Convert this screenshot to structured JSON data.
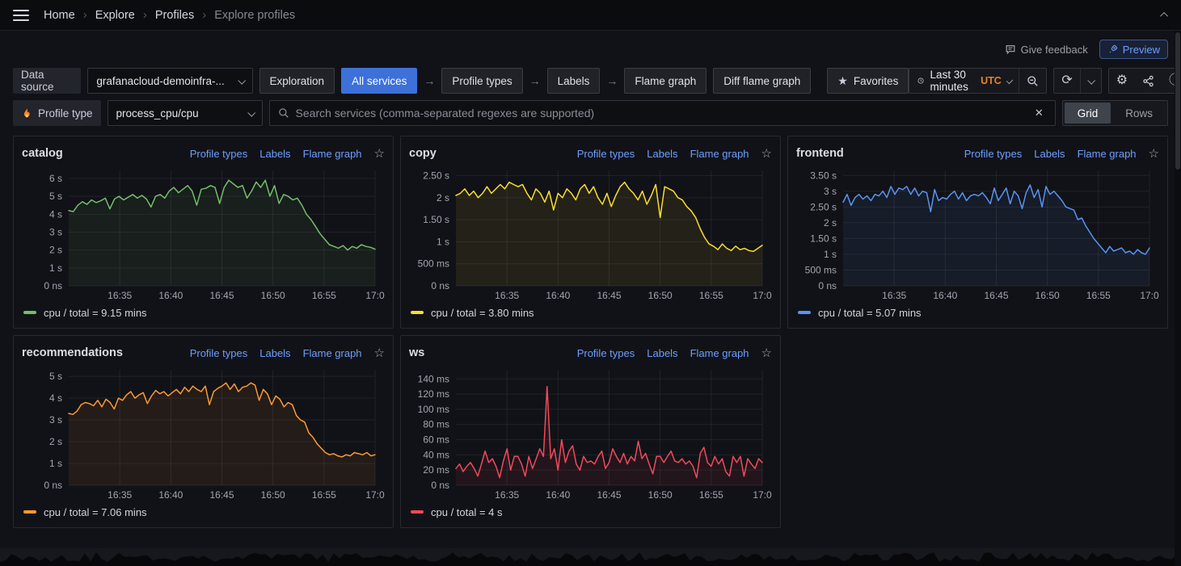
{
  "topnav": {
    "breadcrumbs": [
      "Home",
      "Explore",
      "Profiles",
      "Explore profiles"
    ]
  },
  "page_actions": {
    "give_feedback": "Give feedback",
    "preview": "Preview"
  },
  "toolbar": {
    "data_source_label": "Data source",
    "data_source_value": "grafanacloud-demoinfra-...",
    "exploration": "Exploration",
    "steps": [
      "All services",
      "Profile types",
      "Labels",
      "Flame graph"
    ],
    "diff_flame_graph": "Diff flame graph",
    "favorites": "Favorites",
    "time_range": "Last 30 minutes",
    "timezone": "UTC"
  },
  "filters": {
    "profile_type_label": "Profile type",
    "profile_type_value": "process_cpu/cpu",
    "search_placeholder": "Search services (comma-separated regexes are supported)",
    "layout_options": [
      "Grid",
      "Rows"
    ],
    "layout_selected": "Grid"
  },
  "icons": {
    "breadcrumb_separator": "›",
    "step_arrow": "→",
    "favorites_star": "★",
    "panel_star": "☆",
    "clear": "✕",
    "gear": "⚙",
    "info": "ⓘ",
    "refresh": "⟳"
  },
  "colors": {
    "accent_blue": "#3D71D9",
    "link_blue": "#6E9FFF",
    "utc_orange": "#E8832C",
    "series_green": "#73BF69",
    "series_yellow": "#FADE2A",
    "series_blue": "#5794F2",
    "series_orange": "#FF9830",
    "series_red": "#F2495C"
  },
  "panel_links": [
    "Profile types",
    "Labels",
    "Flame graph"
  ],
  "chart_data": [
    {
      "type": "line",
      "title": "catalog",
      "legend": "cpu / total = 9.15 mins",
      "series_name": "cpu",
      "color": "#73BF69",
      "unit": "seconds",
      "ylim": [
        0,
        6.45
      ],
      "y_ticks": [
        {
          "label": "0 ns",
          "value": 0
        },
        {
          "label": "1 s",
          "value": 1
        },
        {
          "label": "2 s",
          "value": 2
        },
        {
          "label": "3 s",
          "value": 3
        },
        {
          "label": "4 s",
          "value": 4
        },
        {
          "label": "5 s",
          "value": 5
        },
        {
          "label": "6 s",
          "value": 6
        }
      ],
      "x_range_minutes": 30,
      "x_ticks": [
        {
          "label": "16:35",
          "minute": 5
        },
        {
          "label": "16:40",
          "minute": 10
        },
        {
          "label": "16:45",
          "minute": 15
        },
        {
          "label": "16:50",
          "minute": 20
        },
        {
          "label": "16:55",
          "minute": 25
        },
        {
          "label": "17:0",
          "minute": 30
        }
      ],
      "values": [
        4.2,
        4.15,
        4.5,
        4.7,
        4.55,
        4.8,
        4.65,
        4.75,
        4.9,
        4.3,
        4.85,
        5.0,
        4.8,
        4.95,
        5.1,
        4.9,
        5.05,
        4.85,
        4.4,
        5.0,
        5.1,
        4.9,
        5.3,
        5.5,
        5.2,
        5.4,
        5.6,
        5.3,
        4.5,
        5.4,
        5.45,
        5.6,
        5.5,
        4.6,
        5.5,
        5.9,
        5.7,
        5.5,
        5.6,
        4.9,
        5.3,
        5.8,
        5.5,
        5.9,
        5.0,
        5.6,
        4.6,
        5.1,
        5.0,
        4.8,
        4.9,
        4.5,
        4.0,
        3.7,
        3.3,
        2.9,
        2.6,
        2.3,
        2.2,
        2.1,
        2.25,
        2.0,
        2.2,
        2.1,
        2.3,
        2.2,
        2.15,
        2.05
      ]
    },
    {
      "type": "line",
      "title": "copy",
      "legend": "cpu / total = 3.80 mins",
      "series_name": "cpu",
      "color": "#FADE2A",
      "unit": "seconds",
      "ylim": [
        0,
        2.62
      ],
      "y_ticks": [
        {
          "label": "0 ns",
          "value": 0
        },
        {
          "label": "500 ms",
          "value": 0.5
        },
        {
          "label": "1 s",
          "value": 1
        },
        {
          "label": "1.50 s",
          "value": 1.5
        },
        {
          "label": "2 s",
          "value": 2
        },
        {
          "label": "2.50 s",
          "value": 2.5
        }
      ],
      "x_range_minutes": 30,
      "x_ticks": [
        {
          "label": "16:35",
          "minute": 5
        },
        {
          "label": "16:40",
          "minute": 10
        },
        {
          "label": "16:45",
          "minute": 15
        },
        {
          "label": "16:50",
          "minute": 20
        },
        {
          "label": "16:55",
          "minute": 25
        },
        {
          "label": "17:0",
          "minute": 30
        }
      ],
      "values": [
        2.05,
        2.1,
        2.2,
        2.05,
        2.15,
        2.0,
        2.1,
        2.25,
        2.1,
        2.2,
        2.3,
        2.2,
        2.35,
        2.3,
        2.25,
        2.3,
        2.1,
        1.95,
        2.2,
        2.1,
        1.9,
        2.15,
        1.72,
        2.1,
        2.0,
        2.2,
        2.1,
        1.95,
        2.2,
        2.3,
        2.1,
        2.25,
        2.0,
        1.85,
        2.1,
        1.8,
        2.05,
        2.25,
        2.35,
        2.2,
        2.1,
        1.95,
        2.15,
        1.85,
        2.05,
        2.3,
        1.55,
        2.25,
        2.2,
        2.15,
        2.0,
        1.95,
        1.8,
        1.7,
        1.55,
        1.3,
        1.1,
        0.95,
        0.9,
        0.82,
        0.95,
        0.85,
        0.8,
        0.9,
        0.82,
        0.85,
        0.8,
        0.78,
        0.85,
        0.92
      ]
    },
    {
      "type": "line",
      "title": "frontend",
      "legend": "cpu / total = 5.07 mins",
      "series_name": "cpu",
      "color": "#5794F2",
      "unit": "seconds",
      "ylim": [
        0,
        3.66
      ],
      "y_ticks": [
        {
          "label": "0 ns",
          "value": 0
        },
        {
          "label": "500 ms",
          "value": 0.5
        },
        {
          "label": "1 s",
          "value": 1
        },
        {
          "label": "1.50 s",
          "value": 1.5
        },
        {
          "label": "2 s",
          "value": 2
        },
        {
          "label": "2.50 s",
          "value": 2.5
        },
        {
          "label": "3 s",
          "value": 3
        },
        {
          "label": "3.50 s",
          "value": 3.5
        }
      ],
      "x_range_minutes": 30,
      "x_ticks": [
        {
          "label": "16:35",
          "minute": 5
        },
        {
          "label": "16:40",
          "minute": 10
        },
        {
          "label": "16:45",
          "minute": 15
        },
        {
          "label": "16:50",
          "minute": 20
        },
        {
          "label": "16:55",
          "minute": 25
        },
        {
          "label": "17:0",
          "minute": 30
        }
      ],
      "values": [
        2.65,
        2.9,
        2.55,
        2.8,
        2.9,
        2.75,
        2.85,
        2.7,
        2.9,
        2.85,
        3.0,
        2.8,
        3.15,
        2.9,
        3.1,
        3.05,
        3.15,
        2.9,
        3.1,
        2.85,
        3.0,
        2.95,
        2.35,
        3.05,
        2.7,
        2.8,
        2.75,
        2.9,
        3.0,
        2.75,
        2.95,
        2.7,
        2.85,
        2.9,
        2.85,
        2.95,
        2.8,
        2.6,
        3.1,
        2.7,
        2.9,
        3.1,
        2.6,
        3.0,
        2.85,
        2.45,
        2.95,
        3.2,
        2.8,
        3.05,
        2.5,
        3.15,
        2.9,
        3.0,
        2.85,
        2.7,
        2.5,
        2.45,
        2.4,
        2.1,
        2.15,
        1.9,
        1.7,
        1.5,
        1.35,
        1.2,
        1.05,
        1.25,
        1.1,
        1.15,
        1.2,
        1.05,
        1.1,
        1.0,
        1.15,
        1.05,
        1.0,
        1.2
      ]
    },
    {
      "type": "line",
      "title": "recommendations",
      "legend": "cpu / total = 7.06 mins",
      "series_name": "cpu",
      "color": "#FF9830",
      "unit": "seconds",
      "ylim": [
        0,
        5.3
      ],
      "y_ticks": [
        {
          "label": "0 ns",
          "value": 0
        },
        {
          "label": "1 s",
          "value": 1
        },
        {
          "label": "2 s",
          "value": 2
        },
        {
          "label": "3 s",
          "value": 3
        },
        {
          "label": "4 s",
          "value": 4
        },
        {
          "label": "5 s",
          "value": 5
        }
      ],
      "x_range_minutes": 30,
      "x_ticks": [
        {
          "label": "16:35",
          "minute": 5
        },
        {
          "label": "16:40",
          "minute": 10
        },
        {
          "label": "16:45",
          "minute": 15
        },
        {
          "label": "16:50",
          "minute": 20
        },
        {
          "label": "16:55",
          "minute": 25
        },
        {
          "label": "17:0",
          "minute": 30
        }
      ],
      "values": [
        3.3,
        3.25,
        3.4,
        3.7,
        3.8,
        3.75,
        3.65,
        3.9,
        3.6,
        3.95,
        3.8,
        3.5,
        4.0,
        3.9,
        4.15,
        4.3,
        4.0,
        4.15,
        4.25,
        3.75,
        4.1,
        4.35,
        4.2,
        4.3,
        4.1,
        4.25,
        4.4,
        4.2,
        4.5,
        4.3,
        4.55,
        4.4,
        4.3,
        4.55,
        3.7,
        4.3,
        4.45,
        4.55,
        4.7,
        4.4,
        4.65,
        4.3,
        4.5,
        4.55,
        4.7,
        4.6,
        3.9,
        4.4,
        4.2,
        3.7,
        4.1,
        3.95,
        3.6,
        3.8,
        3.7,
        3.2,
        3.0,
        2.9,
        2.4,
        2.2,
        1.9,
        1.7,
        1.5,
        1.4,
        1.45,
        1.35,
        1.3,
        1.4,
        1.35,
        1.5,
        1.45,
        1.4,
        1.5,
        1.35,
        1.4
      ]
    },
    {
      "type": "line",
      "title": "ws",
      "legend": "cpu / total = 4 s",
      "series_name": "cpu",
      "color": "#F2495C",
      "unit": "milliseconds",
      "ylim": [
        0,
        152
      ],
      "y_ticks": [
        {
          "label": "0 ns",
          "value": 0
        },
        {
          "label": "20 ms",
          "value": 20
        },
        {
          "label": "40 ms",
          "value": 40
        },
        {
          "label": "60 ms",
          "value": 60
        },
        {
          "label": "80 ms",
          "value": 80
        },
        {
          "label": "100 ms",
          "value": 100
        },
        {
          "label": "120 ms",
          "value": 120
        },
        {
          "label": "140 ms",
          "value": 140
        }
      ],
      "x_range_minutes": 30,
      "x_ticks": [
        {
          "label": "16:35",
          "minute": 5
        },
        {
          "label": "16:40",
          "minute": 10
        },
        {
          "label": "16:45",
          "minute": 15
        },
        {
          "label": "16:50",
          "minute": 20
        },
        {
          "label": "16:55",
          "minute": 25
        },
        {
          "label": "17:0",
          "minute": 30
        }
      ],
      "values": [
        22,
        28,
        18,
        25,
        30,
        22,
        12,
        28,
        45,
        30,
        35,
        25,
        10,
        32,
        48,
        20,
        38,
        38,
        28,
        12,
        38,
        22,
        35,
        48,
        38,
        130,
        35,
        48,
        20,
        60,
        30,
        45,
        52,
        28,
        20,
        38,
        30,
        32,
        28,
        38,
        45,
        22,
        30,
        48,
        38,
        30,
        42,
        28,
        38,
        32,
        58,
        35,
        42,
        28,
        15,
        38,
        38,
        30,
        38,
        45,
        32,
        30,
        35,
        28,
        32,
        25,
        10,
        42,
        50,
        30,
        25,
        38,
        28,
        35,
        18,
        12,
        38,
        30,
        38,
        12,
        35,
        28,
        22,
        35,
        30
      ]
    }
  ]
}
